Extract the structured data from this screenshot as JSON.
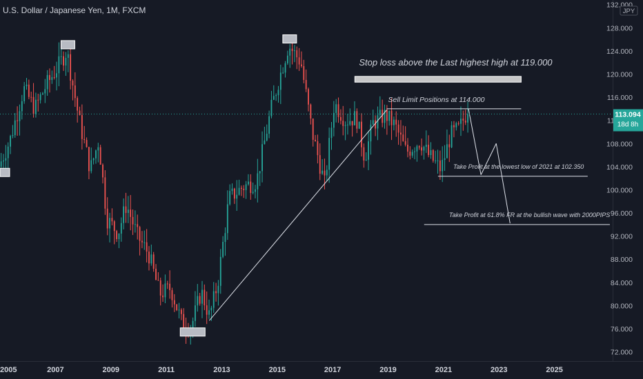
{
  "header": {
    "title": "U.S. Dollar / Japanese Yen, 1M, FXCM"
  },
  "axis": {
    "currency": "JPY"
  },
  "price_label": {
    "value": "113.094",
    "countdown": "18d 8h"
  },
  "colors": {
    "background": "#161a25",
    "up": "#26a69a",
    "down": "#ef5350",
    "price_line": "#26a69a",
    "annotation": "#d1d4dc"
  },
  "chart_data": {
    "type": "candlestick",
    "title": "U.S. Dollar / Japanese Yen, 1M, FXCM",
    "xlim": [
      2005.0,
      2027.1
    ],
    "ylim": [
      70.4,
      132.8
    ],
    "y_ticks": [
      "132.000",
      "128.000",
      "124.000",
      "120.000",
      "116.000",
      "112.000",
      "108.000",
      "104.000",
      "100.000",
      "96.000",
      "92.000",
      "88.000",
      "84.000",
      "80.000",
      "76.000",
      "72.000"
    ],
    "y_tick_values": [
      132,
      128,
      124,
      120,
      116,
      112,
      108,
      104,
      100,
      96,
      92,
      88,
      84,
      80,
      76,
      72
    ],
    "x_ticks": [
      "2005",
      "2007",
      "2009",
      "2011",
      "2013",
      "2015",
      "2017",
      "2019",
      "2021",
      "2023",
      "2025"
    ],
    "x_tick_values": [
      2005,
      2007,
      2009,
      2011,
      2013,
      2015,
      2017,
      2019,
      2021,
      2023,
      2025
    ],
    "last_price": 113.094,
    "price_path": [
      [
        2005.0,
        104.0
      ],
      [
        2005.4,
        108.5
      ],
      [
        2005.9,
        117.5
      ],
      [
        2006.3,
        114.0
      ],
      [
        2006.7,
        118.0
      ],
      [
        2007.1,
        121.0
      ],
      [
        2007.45,
        124.0
      ],
      [
        2007.9,
        112.0
      ],
      [
        2008.3,
        103.5
      ],
      [
        2008.6,
        108.5
      ],
      [
        2008.9,
        95.0
      ],
      [
        2009.3,
        92.5
      ],
      [
        2009.6,
        97.5
      ],
      [
        2010.0,
        92.0
      ],
      [
        2010.4,
        89.0
      ],
      [
        2010.8,
        82.0
      ],
      [
        2011.2,
        83.0
      ],
      [
        2011.6,
        77.0
      ],
      [
        2011.95,
        76.5
      ],
      [
        2012.3,
        82.5
      ],
      [
        2012.6,
        78.0
      ],
      [
        2012.9,
        84.0
      ],
      [
        2013.3,
        98.5
      ],
      [
        2013.8,
        100.5
      ],
      [
        2014.3,
        101.5
      ],
      [
        2014.8,
        113.5
      ],
      [
        2015.1,
        119.0
      ],
      [
        2015.45,
        125.0
      ],
      [
        2015.9,
        122.0
      ],
      [
        2016.3,
        110.0
      ],
      [
        2016.75,
        101.0
      ],
      [
        2017.1,
        115.0
      ],
      [
        2017.5,
        112.0
      ],
      [
        2017.9,
        112.5
      ],
      [
        2018.2,
        105.5
      ],
      [
        2018.5,
        111.5
      ],
      [
        2018.95,
        113.0
      ],
      [
        2019.3,
        111.0
      ],
      [
        2019.7,
        106.5
      ],
      [
        2020.2,
        108.5
      ],
      [
        2020.5,
        106.0
      ],
      [
        2020.95,
        103.5
      ],
      [
        2021.3,
        109.5
      ],
      [
        2021.6,
        110.5
      ],
      [
        2021.85,
        113.09
      ]
    ],
    "swing_labels": [
      {
        "x": 2007.45,
        "y": 124.0,
        "position": "above"
      },
      {
        "x": 2015.45,
        "y": 125.0,
        "position": "above"
      },
      {
        "x": 2011.95,
        "y": 76.5,
        "position": "below"
      },
      {
        "x": 2005.0,
        "y": 103.0,
        "position": "left"
      }
    ],
    "lines": [
      {
        "x1": 2012.55,
        "y1": 77.4,
        "x2": 2018.95,
        "y2": 113.8
      },
      {
        "x1": 2018.95,
        "y1": 114.0,
        "x2": 2023.8,
        "y2": 114.0
      },
      {
        "x1": 2021.9,
        "y1": 114.0,
        "x2": 2022.35,
        "y2": 102.6
      },
      {
        "x1": 2022.35,
        "y1": 102.6,
        "x2": 2022.9,
        "y2": 108.0
      },
      {
        "x1": 2022.9,
        "y1": 108.0,
        "x2": 2023.4,
        "y2": 94.2
      },
      {
        "x1": 2020.8,
        "y1": 102.35,
        "x2": 2026.2,
        "y2": 102.35
      },
      {
        "x1": 2020.3,
        "y1": 94.0,
        "x2": 2027.0,
        "y2": 94.0
      }
    ],
    "zones": [
      {
        "x1": 2017.8,
        "x2": 2023.8,
        "y1": 118.6,
        "y2": 119.6
      }
    ],
    "annotations": [
      {
        "text": "Stop loss above the Last highest high at 119.000",
        "x": 2017.95,
        "y": 121.5,
        "size": 13
      },
      {
        "text": "Sell Limit Positions at 114.000",
        "x": 2019.0,
        "y": 115.2,
        "size": 10.5
      },
      {
        "text": "Take Profit at the lowest low of 2021 at 102.350",
        "x": 2021.35,
        "y": 103.6,
        "size": 9
      },
      {
        "text": "Take Profit at 61.8% FR at the bullish wave with 2000PIPS",
        "x": 2021.2,
        "y": 95.3,
        "size": 9
      }
    ]
  }
}
